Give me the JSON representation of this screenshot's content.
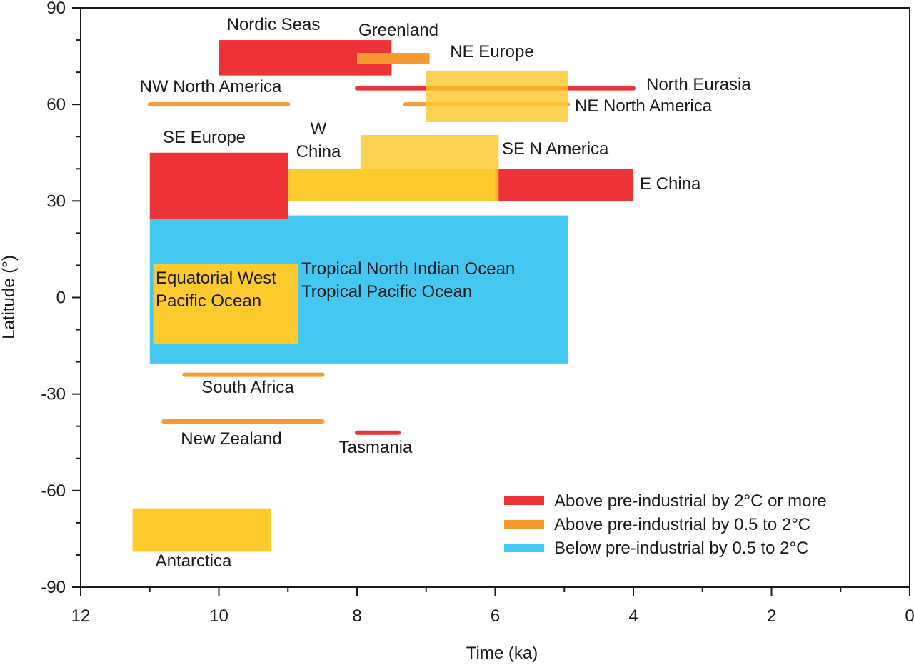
{
  "chart_data": {
    "type": "range-bar",
    "xlabel": "Time (ka)",
    "ylabel": "Latitude (°)",
    "xlim": [
      12,
      0
    ],
    "ylim": [
      -90,
      90
    ],
    "x_reversed": true,
    "x_ticks": [
      "12",
      "10",
      "8",
      "6",
      "4",
      "2",
      "0"
    ],
    "x_tick_values": [
      12,
      10,
      8,
      6,
      4,
      2,
      0
    ],
    "y_ticks": [
      "90",
      "60",
      "30",
      "0",
      "-30",
      "-60",
      "-90"
    ],
    "y_tick_values": [
      90,
      60,
      30,
      0,
      -30,
      -60,
      -90
    ],
    "legend_position": "bottom-right",
    "legend": [
      {
        "key": "red",
        "label": "Above pre-industrial by 2°C or more",
        "color": "#ee3338"
      },
      {
        "key": "orange",
        "label": "Above pre-industrial by 0.5 to 2°C",
        "color": "#f79a32"
      },
      {
        "key": "blue",
        "label": "Below pre-industrial by 0.5 to 2°C",
        "color": "#44c7f1"
      }
    ],
    "colors": {
      "red": "#ee3338",
      "orange": "#f79a32",
      "blue": "#44c7f1",
      "yellow": "#fecb2e",
      "yellow_translucent": "rgba(253,200,44,0.82)"
    },
    "regions": [
      {
        "label": "Tropical North Indian Ocean\nTropical Pacific Ocean",
        "x_from": 11.0,
        "x_to": 4.95,
        "lat_from": -20.5,
        "lat_to": 25.5,
        "color": "blue",
        "kind": "box"
      },
      {
        "label": "Equatorial West\nPacific Ocean",
        "x_from": 10.95,
        "x_to": 8.85,
        "lat_from": -14.5,
        "lat_to": 10.5,
        "color": "yellow",
        "kind": "box"
      },
      {
        "label": "SE Europe",
        "x_from": 11.0,
        "x_to": 9.0,
        "lat_from": 24.5,
        "lat_to": 45.0,
        "color": "red",
        "kind": "box"
      },
      {
        "label": "E China",
        "x_from": 6.0,
        "x_to": 4.0,
        "lat_from": 30.0,
        "lat_to": 40.0,
        "color": "red",
        "kind": "box"
      },
      {
        "label": "W\nChina",
        "x_from": 9.0,
        "x_to": 6.0,
        "lat_from": 30.0,
        "lat_to": 40.0,
        "color": "yellow",
        "kind": "box"
      },
      {
        "label": "SE N America",
        "x_from": 7.95,
        "x_to": 5.95,
        "lat_from": 30.0,
        "lat_to": 50.5,
        "color": "yellow_translucent",
        "kind": "box"
      },
      {
        "label": "Nordic Seas",
        "x_from": 10.0,
        "x_to": 7.5,
        "lat_from": 69.0,
        "lat_to": 80.0,
        "color": "red",
        "kind": "box"
      },
      {
        "label": "Greenland",
        "x_from": 8.0,
        "x_to": 6.95,
        "lat_from": 72.5,
        "lat_to": 76.0,
        "color": "orange",
        "kind": "box"
      },
      {
        "label": "North Eurasia",
        "x_from": 8.0,
        "x_to": 4.0,
        "lat_from": 65.0,
        "lat_to": 65.0,
        "color": "red",
        "kind": "line"
      },
      {
        "label": "NE North America",
        "x_from": 7.3,
        "x_to": 4.95,
        "lat_from": 60.0,
        "lat_to": 60.0,
        "color": "orange",
        "kind": "line"
      },
      {
        "label": "NE Europe",
        "x_from": 7.0,
        "x_to": 4.95,
        "lat_from": 54.5,
        "lat_to": 70.5,
        "color": "yellow_translucent",
        "kind": "box"
      },
      {
        "label": "NW North America",
        "x_from": 11.0,
        "x_to": 9.0,
        "lat_from": 60.0,
        "lat_to": 60.0,
        "color": "orange",
        "kind": "line"
      },
      {
        "label": "South Africa",
        "x_from": 10.5,
        "x_to": 8.5,
        "lat_from": -24.0,
        "lat_to": -24.0,
        "color": "orange",
        "kind": "line"
      },
      {
        "label": "New Zealand",
        "x_from": 10.8,
        "x_to": 8.5,
        "lat_from": -38.5,
        "lat_to": -38.5,
        "color": "orange",
        "kind": "line"
      },
      {
        "label": "Tasmania",
        "x_from": 8.0,
        "x_to": 7.4,
        "lat_from": -42.0,
        "lat_to": -42.0,
        "color": "red",
        "kind": "line"
      },
      {
        "label": "Antarctica",
        "x_from": 11.25,
        "x_to": 9.25,
        "lat_from": -79.0,
        "lat_to": -65.5,
        "color": "yellow",
        "kind": "box"
      }
    ]
  }
}
